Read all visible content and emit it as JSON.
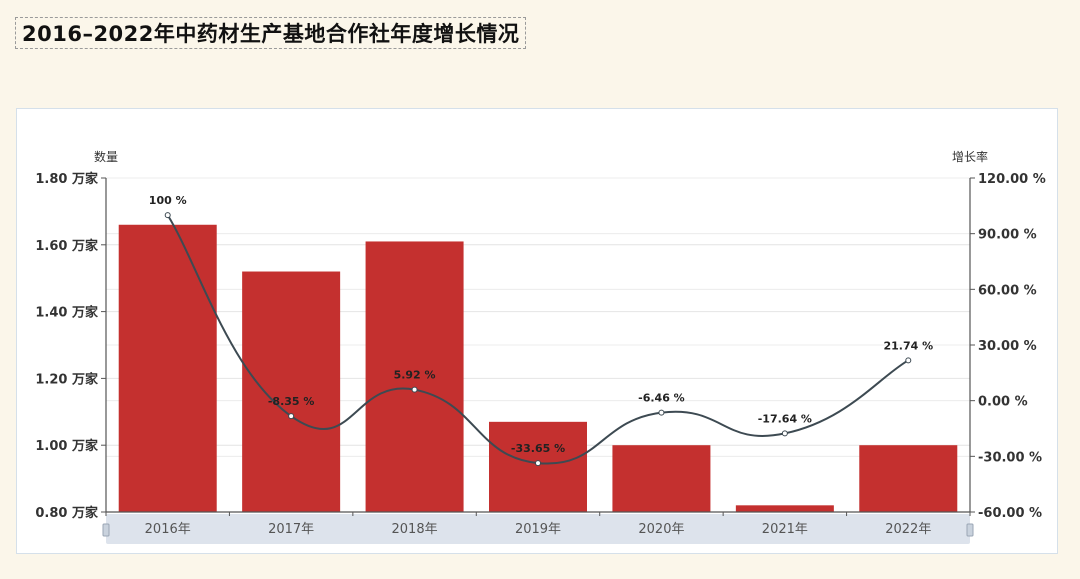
{
  "title": "2016–2022年中药材生产基地合作社年度增长情况",
  "chart_data": {
    "type": "bar+line",
    "title": "2016–2022年中药材生产基地合作社年度增长情况",
    "categories": [
      "2016年",
      "2017年",
      "2018年",
      "2019年",
      "2020年",
      "2021年",
      "2022年"
    ],
    "series": [
      {
        "name": "数量",
        "type": "bar",
        "axis": "left",
        "unit": "万家",
        "color": "#c4302f",
        "values": [
          1.66,
          1.52,
          1.61,
          1.07,
          1.0,
          0.82,
          1.0
        ]
      },
      {
        "name": "增长率",
        "type": "line",
        "axis": "right",
        "unit": "%",
        "color": "#3d4a52",
        "smooth": true,
        "values": [
          100,
          -8.35,
          5.92,
          -33.65,
          -6.46,
          -17.64,
          21.74
        ],
        "labels": [
          "100 %",
          "-8.35 %",
          "5.92 %",
          "-33.65 %",
          "-6.46 %",
          "-17.64 %",
          "21.74 %"
        ]
      }
    ],
    "ylabel": "数量",
    "ylabel_right": "增长率",
    "ylim": [
      0.8,
      1.8
    ],
    "ylim_right": [
      -60,
      120
    ],
    "yticks": [
      "1.80 万家",
      "1.60 万家",
      "1.40 万家",
      "1.20 万家",
      "1.00 万家",
      "0.80 万家"
    ],
    "yticks_right": [
      "120.00 %",
      "90.00 %",
      "60.00 %",
      "30.00 %",
      "0.00 %",
      "-30.00 %",
      "-60.00 %"
    ],
    "grid": true,
    "datazoom_slider": true
  }
}
